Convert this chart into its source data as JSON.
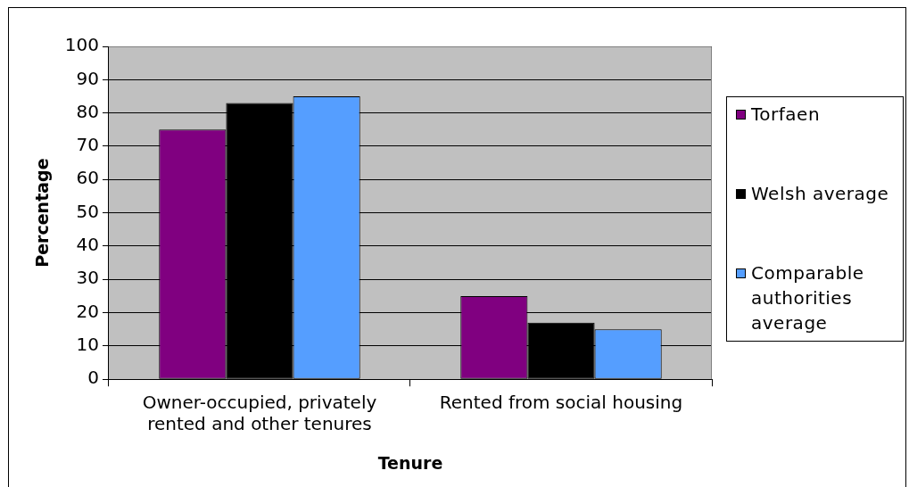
{
  "chart_data": {
    "type": "bar",
    "xlabel": "Tenure",
    "ylabel": "Percentage",
    "categories": [
      "Owner-occupied, privately rented and other tenures",
      "Rented from social housing"
    ],
    "series": [
      {
        "name": "Torfaen",
        "color": "#800080",
        "values": [
          75,
          25
        ]
      },
      {
        "name": "Welsh average",
        "color": "#000000",
        "values": [
          83,
          17
        ]
      },
      {
        "name": "Comparable authorities average",
        "color": "#559eff",
        "values": [
          85,
          15
        ]
      }
    ],
    "ylim": [
      0,
      100
    ],
    "yticks": [
      0,
      10,
      20,
      30,
      40,
      50,
      60,
      70,
      80,
      90,
      100
    ],
    "grid": "y",
    "legend": "right"
  }
}
